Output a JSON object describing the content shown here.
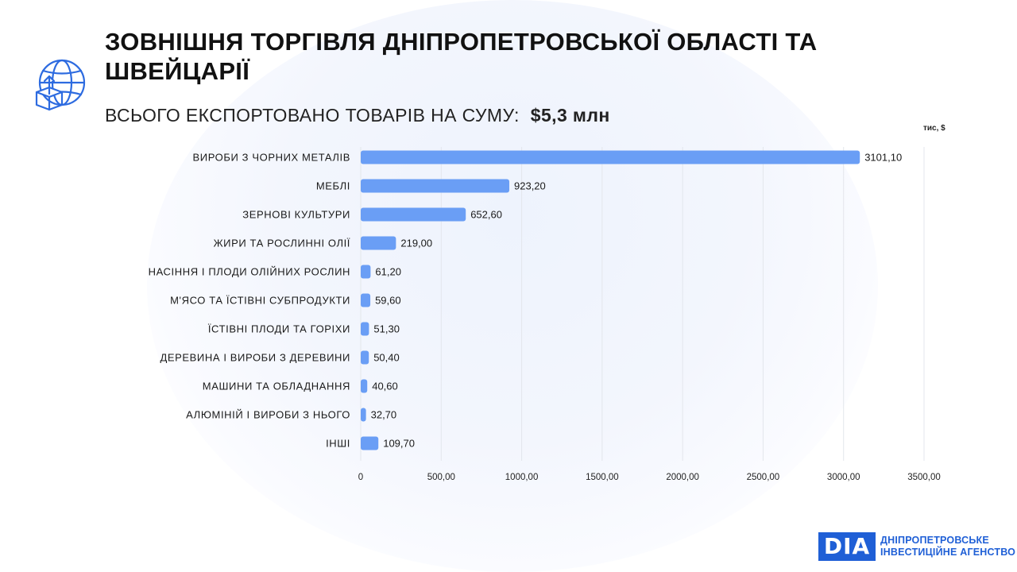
{
  "header": {
    "title": "ЗОВНІШНЯ ТОРГІВЛЯ ДНІПРОПЕТРОВСЬКОЇ ОБЛАСТІ ТА ШВЕЙЦАРІЇ",
    "subtitle_text": "ВСЬОГО ЕКСПОРТОВАНО ТОВАРІВ НА СУМУ:",
    "subtitle_amount": "$5,3 млн"
  },
  "brand": {
    "mark": "DIA",
    "line1": "ДНІПРОПЕТРОВСЬКЕ",
    "line2": "ІНВЕСТИЦІЙНЕ АГЕНСТВО",
    "color": "#1f5fd6"
  },
  "icons": {
    "header_icon": "globe-export-box-icon"
  },
  "chart_data": {
    "type": "bar",
    "orientation": "horizontal",
    "unit_label": "тис, $",
    "categories": [
      "ВИРОБИ З ЧОРНИХ МЕТАЛІВ",
      "МЕБЛІ",
      "ЗЕРНОВІ КУЛЬТУРИ",
      "ЖИРИ ТА РОСЛИННІ ОЛІЇ",
      "НАСІННЯ І ПЛОДИ ОЛІЙНИХ РОСЛИН",
      "М'ЯСО ТА ЇСТІВНІ СУБПРОДУКТИ",
      "ЇСТІВНІ ПЛОДИ ТА ГОРІХИ",
      "ДЕРЕВИНА І ВИРОБИ З ДЕРЕВИНИ",
      "МАШИНИ ТА ОБЛАДНАННЯ",
      "АЛЮМІНІЙ І ВИРОБИ З НЬОГО",
      "ІНШІ"
    ],
    "values": [
      3101.1,
      923.2,
      652.6,
      219.0,
      61.2,
      59.6,
      51.3,
      50.4,
      40.6,
      32.7,
      109.7
    ],
    "value_labels": [
      "3101,10",
      "923,20",
      "652,60",
      "219,00",
      "61,20",
      "59,60",
      "51,30",
      "50,40",
      "40,60",
      "32,70",
      "109,70"
    ],
    "xlim": [
      0,
      3500
    ],
    "ticks": [
      0,
      500,
      1000,
      1500,
      2000,
      2500,
      3000,
      3500
    ],
    "tick_labels": [
      "0",
      "500,00",
      "1000,00",
      "1500,00",
      "2000,00",
      "2500,00",
      "3000,00",
      "3500,00"
    ],
    "bar_color": "#6a9ef5",
    "grid": "vertical"
  }
}
